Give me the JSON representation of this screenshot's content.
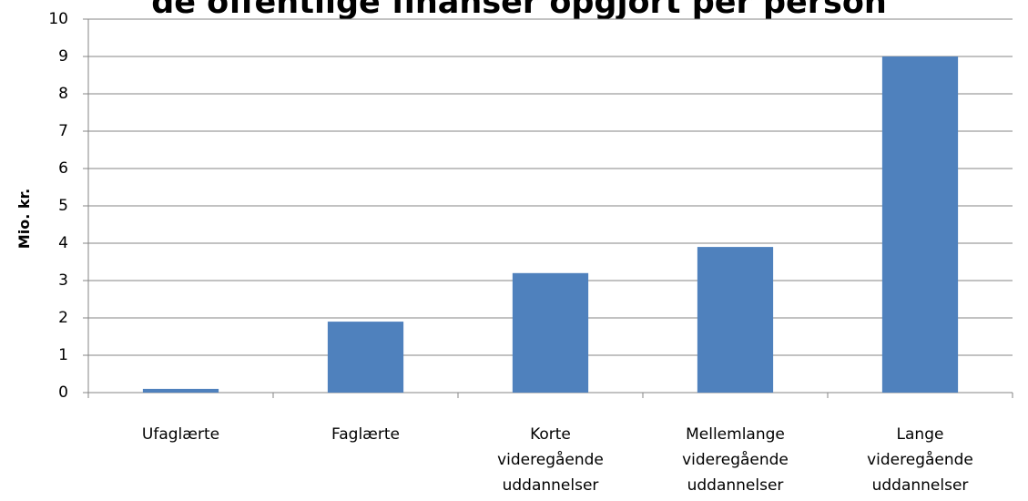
{
  "chart_data": {
    "type": "bar",
    "title": "de offentlige finanser opgjort per person",
    "y_label": "Mio. kr.",
    "categories": [
      "Ufaglærte",
      "Faglærte",
      "Korte videregående uddannelser",
      "Mellemlange videregående uddannelser",
      "Lange videregående uddannelser"
    ],
    "values": [
      0.1,
      1.9,
      3.2,
      3.9,
      9.0
    ],
    "color": "#4f81bd",
    "ylim": [
      0,
      10
    ],
    "yticks": [
      0,
      1,
      2,
      3,
      4,
      5,
      6,
      7,
      8,
      9,
      10
    ],
    "grid": true
  }
}
